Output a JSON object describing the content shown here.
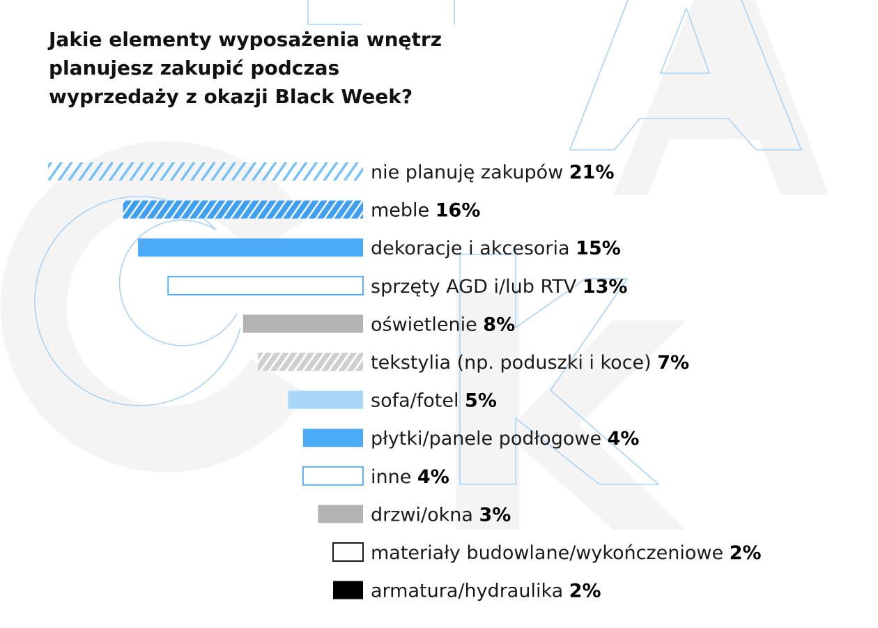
{
  "title_lines": [
    "Jakie elementy wyposażenia wnętrz",
    "planujesz zakupić podczas",
    "wyprzedaży z okazji Black Week?"
  ],
  "chart_data": {
    "type": "bar",
    "orientation": "horizontal",
    "title": "Jakie elementy wyposażenia wnętrz planujesz zakupić podczas wyprzedaży z okazji Black Week?",
    "categories": [
      "nie planuję zakupów",
      "meble",
      "dekoracje i akcesoria",
      "sprzęty AGD i/lub RTV",
      "oświetlenie",
      "tekstylia (np. poduszki i koce)",
      "sofa/fotel",
      "płytki/panele podłogowe",
      "inne",
      "drzwi/okna",
      "materiały budowlane/wykończeniowe",
      "armatura/hydraulika"
    ],
    "values": [
      21,
      16,
      15,
      13,
      8,
      7,
      5,
      4,
      4,
      3,
      2,
      2
    ],
    "value_labels": [
      "21%",
      "16%",
      "15%",
      "13%",
      "8%",
      "7%",
      "5%",
      "4%",
      "4%",
      "3%",
      "2%",
      "2%"
    ],
    "styles": [
      "light-blue-hatch",
      "blue-hatch",
      "blue-solid",
      "blue-outline",
      "gray-solid",
      "gray-hatch",
      "light-blue-solid",
      "blue-solid",
      "blue-outline",
      "gray-solid",
      "black-outline",
      "black-solid"
    ],
    "colors": {
      "blue": "#4baaf5",
      "light_blue": "#a9d7fa",
      "outline_blue": "#4baaf5",
      "gray": "#b3b3b3",
      "gray_hatch": "#c6c6c6",
      "black": "#000000",
      "bg_letters": "#f4f4f4",
      "bg_outline": "#a8d3f7"
    },
    "xlim": [
      0,
      21
    ],
    "grid": false,
    "legend": "none"
  }
}
